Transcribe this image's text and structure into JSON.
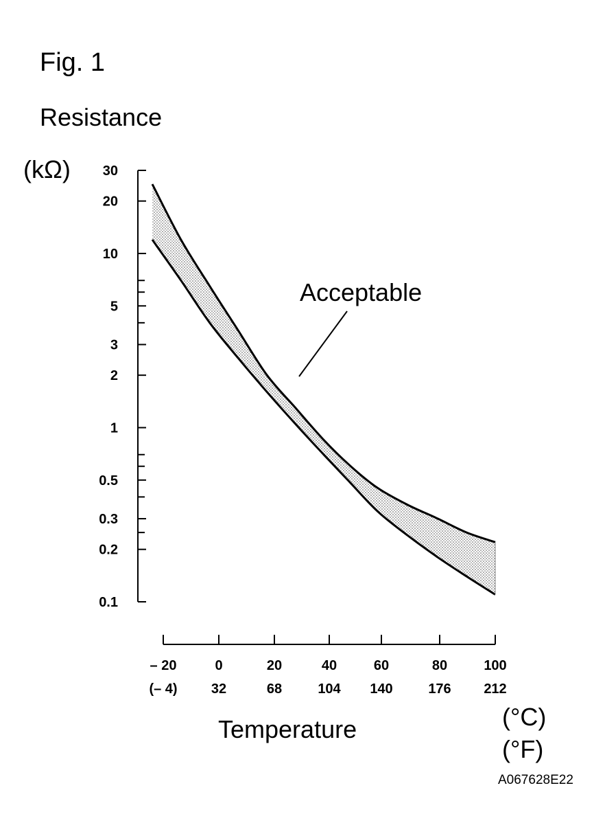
{
  "figure_label": "Fig. 1",
  "y_title": "Resistance",
  "y_unit": "(kΩ)",
  "x_title": "Temperature",
  "x_unit_c": "(°C)",
  "x_unit_f": "(°F)",
  "doc_code": "A067628E22",
  "callout": "Acceptable",
  "chart_data": {
    "type": "area",
    "title": "",
    "xlabel": "Temperature",
    "ylabel": "Resistance",
    "y_scale": "log",
    "ylim": [
      0.1,
      30
    ],
    "xlim": [
      -20,
      100
    ],
    "x_ticks": [
      {
        "c": "– 20",
        "f": "(– 4)",
        "value": -20
      },
      {
        "c": "0",
        "f": "32",
        "value": 0
      },
      {
        "c": "20",
        "f": "68",
        "value": 20
      },
      {
        "c": "40",
        "f": "104",
        "value": 40
      },
      {
        "c": "60",
        "f": "140",
        "value": 60
      },
      {
        "c": "80",
        "f": "176",
        "value": 80
      },
      {
        "c": "100",
        "f": "212",
        "value": 100
      }
    ],
    "y_ticks": [
      {
        "label": "30",
        "value": 30
      },
      {
        "label": "20",
        "value": 20
      },
      {
        "label": "10",
        "value": 10
      },
      {
        "label": "5",
        "value": 5
      },
      {
        "label": "3",
        "value": 3
      },
      {
        "label": "2",
        "value": 2
      },
      {
        "label": "1",
        "value": 1
      },
      {
        "label": "0.5",
        "value": 0.5
      },
      {
        "label": "0.3",
        "value": 0.3
      },
      {
        "label": "0.2",
        "value": 0.2
      },
      {
        "label": "0.1",
        "value": 0.1
      }
    ],
    "y_minor_ticks": [
      7,
      6,
      4,
      0.7,
      0.6,
      0.4,
      0.25
    ],
    "series": [
      {
        "name": "",
        "role": "upper",
        "x": [
          -20,
          -10,
          0,
          10,
          20,
          30,
          40,
          50,
          60,
          70,
          80,
          90,
          100
        ],
        "values": [
          25,
          12,
          6.5,
          3.6,
          2.0,
          1.3,
          0.85,
          0.6,
          0.45,
          0.36,
          0.3,
          0.25,
          0.22
        ]
      },
      {
        "name": "",
        "role": "lower",
        "x": [
          -20,
          -10,
          0,
          10,
          20,
          30,
          40,
          50,
          60,
          70,
          80,
          90,
          100
        ],
        "values": [
          12,
          7.0,
          4.0,
          2.5,
          1.6,
          1.05,
          0.7,
          0.48,
          0.33,
          0.24,
          0.18,
          0.14,
          0.11
        ]
      }
    ],
    "band_label": "Acceptable",
    "annotation_point": {
      "x": 30,
      "y": 1.9
    }
  }
}
